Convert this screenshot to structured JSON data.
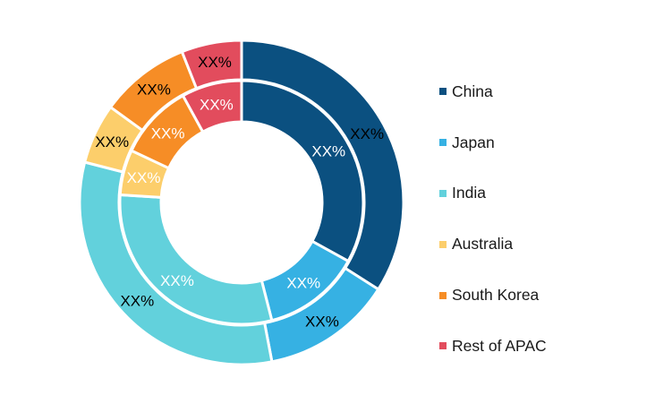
{
  "chart_data": {
    "type": "pie",
    "variant": "nested-donut",
    "categories": [
      "China",
      "Japan",
      "India",
      "Australia",
      "South Korea",
      "Rest of APAC"
    ],
    "colors": [
      "#0b5080",
      "#36b1e3",
      "#62d1dc",
      "#fcce6b",
      "#f68d26",
      "#e24c5d"
    ],
    "series": [
      {
        "ring": "inner",
        "values": [
          33,
          13,
          30,
          6,
          10,
          8
        ],
        "labels": [
          "XX%",
          "XX%",
          "XX%",
          "XX%",
          "XX%",
          "XX%"
        ],
        "label_color": "#ffffff"
      },
      {
        "ring": "outer",
        "values": [
          34,
          13,
          32,
          6,
          9,
          6
        ],
        "labels": [
          "XX%",
          "XX%",
          "XX%",
          "XX%",
          "XX%",
          "XX%"
        ],
        "label_color": "#000000"
      }
    ],
    "legend_position": "right"
  }
}
